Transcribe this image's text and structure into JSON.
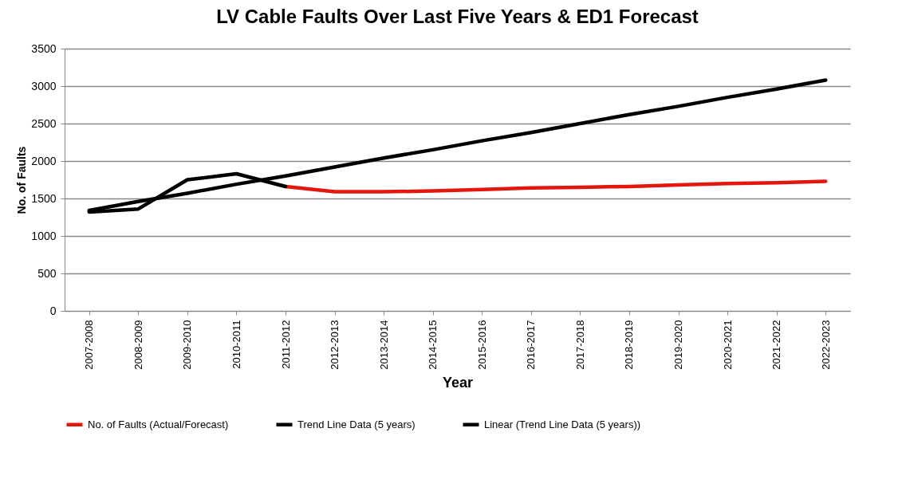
{
  "chart_data": {
    "type": "line",
    "title": "LV Cable Faults Over Last Five Years & ED1 Forecast",
    "xlabel": "Year",
    "ylabel": "No. of Faults",
    "categories": [
      "2007-2008",
      "2008-2009",
      "2009-2010",
      "2010-2011",
      "2011-2012",
      "2012-2013",
      "2013-2014",
      "2014-2015",
      "2015-2016",
      "2016-2017",
      "2017-2018",
      "2018-2019",
      "2019-2020",
      "2020-2021",
      "2021-2022",
      "2022-2023"
    ],
    "series": [
      {
        "name": "No. of Faults (Actual/Forecast)",
        "color": "#e3170d",
        "values": [
          null,
          null,
          null,
          null,
          1660,
          1590,
          1590,
          1600,
          1620,
          1640,
          1650,
          1660,
          1680,
          1700,
          1710,
          1730
        ]
      },
      {
        "name": "Trend Line Data (5 years)",
        "color": "#000000",
        "values": [
          1320,
          1360,
          1750,
          1830,
          1660,
          null,
          null,
          null,
          null,
          null,
          null,
          null,
          null,
          null,
          null,
          null
        ]
      },
      {
        "name": "Linear (Trend Line Data (5 years))",
        "color": "#000000",
        "values": [
          1340,
          1460,
          1570,
          1690,
          1800,
          1920,
          2040,
          2150,
          2270,
          2380,
          2500,
          2620,
          2730,
          2850,
          2960,
          3080
        ]
      }
    ],
    "ylim": [
      0,
      3500
    ],
    "yticks": [
      0,
      500,
      1000,
      1500,
      2000,
      2500,
      3000,
      3500
    ],
    "grid": "y",
    "legend": "bottom"
  }
}
